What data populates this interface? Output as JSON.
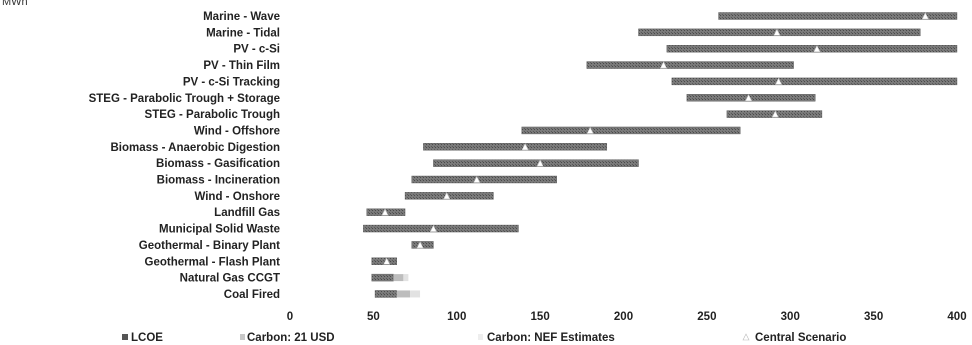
{
  "chart_data": {
    "type": "bar",
    "orientation": "horizontal",
    "subtype": "floating-range",
    "unit_label": "MWh",
    "title": "",
    "xlabel": "",
    "ylabel": "",
    "xlim": [
      0,
      400
    ],
    "xticks": [
      0,
      50,
      100,
      150,
      200,
      250,
      300,
      350,
      400
    ],
    "grid": false,
    "legend_position": "bottom",
    "legend": [
      "LCOE",
      "Carbon: 21 USD",
      "Carbon: NEF Estimates",
      "Central Scenario"
    ],
    "categories": [
      "Marine - Wave",
      "Marine - Tidal",
      "PV - c-Si",
      "PV - Thin Film",
      "PV - c-Si Tracking",
      "STEG - Parabolic Trough + Storage",
      "STEG - Parabolic Trough",
      "Wind - Offshore",
      "Biomass - Anaerobic Digestion",
      "Biomass - Gasification",
      "Biomass - Incineration",
      "Wind - Onshore",
      "Landfill Gas",
      "Municipal Solid Waste",
      "Geothermal - Binary Plant",
      "Geothermal - Flash Plant",
      "Natural Gas CCGT",
      "Coal Fired"
    ],
    "series": [
      {
        "name": "LCOE",
        "ranges": [
          [
            257,
            400
          ],
          [
            209,
            378
          ],
          [
            226,
            400
          ],
          [
            178,
            302
          ],
          [
            229,
            400
          ],
          [
            238,
            315
          ],
          [
            262,
            319
          ],
          [
            139,
            270
          ],
          [
            80,
            190
          ],
          [
            86,
            209
          ],
          [
            73,
            160
          ],
          [
            69,
            122
          ],
          [
            46,
            69
          ],
          [
            44,
            137
          ],
          [
            73,
            86
          ],
          [
            49,
            64
          ],
          [
            49,
            62
          ],
          [
            51,
            64
          ]
        ]
      },
      {
        "name": "Carbon: 21 USD",
        "ranges": [
          [
            0,
            0
          ],
          [
            0,
            0
          ],
          [
            0,
            0
          ],
          [
            0,
            0
          ],
          [
            0,
            0
          ],
          [
            0,
            0
          ],
          [
            0,
            0
          ],
          [
            0,
            0
          ],
          [
            0,
            0
          ],
          [
            0,
            0
          ],
          [
            0,
            0
          ],
          [
            0,
            0
          ],
          [
            0,
            0
          ],
          [
            0,
            0
          ],
          [
            0,
            0
          ],
          [
            0,
            0
          ],
          [
            62,
            68
          ],
          [
            64,
            72
          ]
        ]
      },
      {
        "name": "Carbon: NEF Estimates",
        "ranges": [
          [
            0,
            0
          ],
          [
            0,
            0
          ],
          [
            0,
            0
          ],
          [
            0,
            0
          ],
          [
            0,
            0
          ],
          [
            0,
            0
          ],
          [
            0,
            0
          ],
          [
            0,
            0
          ],
          [
            0,
            0
          ],
          [
            0,
            0
          ],
          [
            0,
            0
          ],
          [
            0,
            0
          ],
          [
            0,
            0
          ],
          [
            0,
            0
          ],
          [
            0,
            0
          ],
          [
            0,
            0
          ],
          [
            68,
            71
          ],
          [
            72,
            78
          ]
        ]
      },
      {
        "name": "Central Scenario",
        "values": [
          381,
          292,
          316,
          224,
          293,
          275,
          291,
          180,
          141,
          150,
          112,
          94,
          57,
          86,
          78,
          58,
          0,
          0
        ]
      }
    ]
  }
}
